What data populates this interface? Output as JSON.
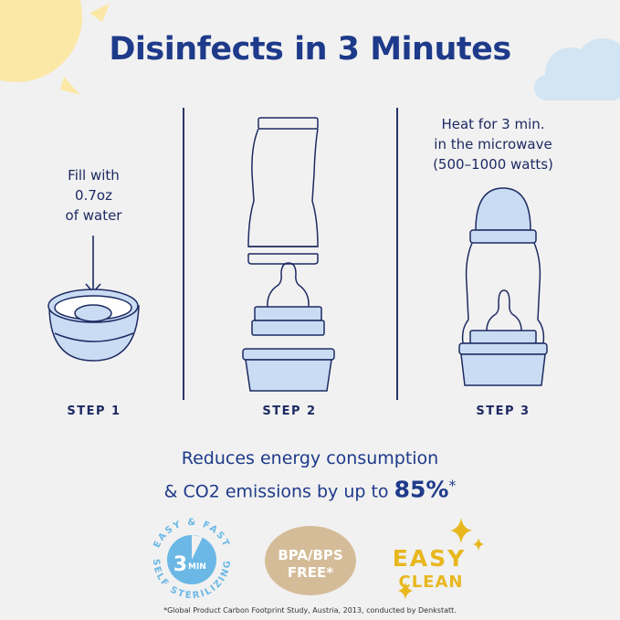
{
  "title": "Disinfects in 3 Minutes",
  "steps": [
    {
      "label": "STEP 1",
      "instruction": [
        "Fill with",
        "0.7oz",
        "of water"
      ]
    },
    {
      "label": "STEP 2"
    },
    {
      "label": "STEP 3",
      "instruction": [
        "Heat for 3 min.",
        "in the microwave",
        "(500–1000 watts)"
      ]
    }
  ],
  "energy": {
    "line1": "Reduces energy consumption",
    "line2": "& CO2 emissions by up to ",
    "percent": "85%",
    "asterisk": "*"
  },
  "badges": {
    "sterilizing": {
      "top_arc": "EASY & FAST",
      "bottom_arc": "SELF STERILIZING",
      "number": "3",
      "unit": "MIN"
    },
    "bpa": {
      "line1": "BPA/BPS",
      "line2": "FREE*"
    },
    "clean": {
      "line1": "EASY",
      "line2": "CLEAN"
    }
  },
  "footnote": "*Global Product Carbon Footprint Study, Austria, 2013, conducted by Denkstatt.",
  "colors": {
    "navy": "#1e3a8a",
    "line": "#1d2a62",
    "light_blue": "#c9dcf3",
    "badge_blue": "#6bb8e6",
    "beige": "#d5bc98",
    "yellow": "#e8b71e",
    "sun": "#fbe6a0",
    "cloud": "#cfe3f2"
  }
}
